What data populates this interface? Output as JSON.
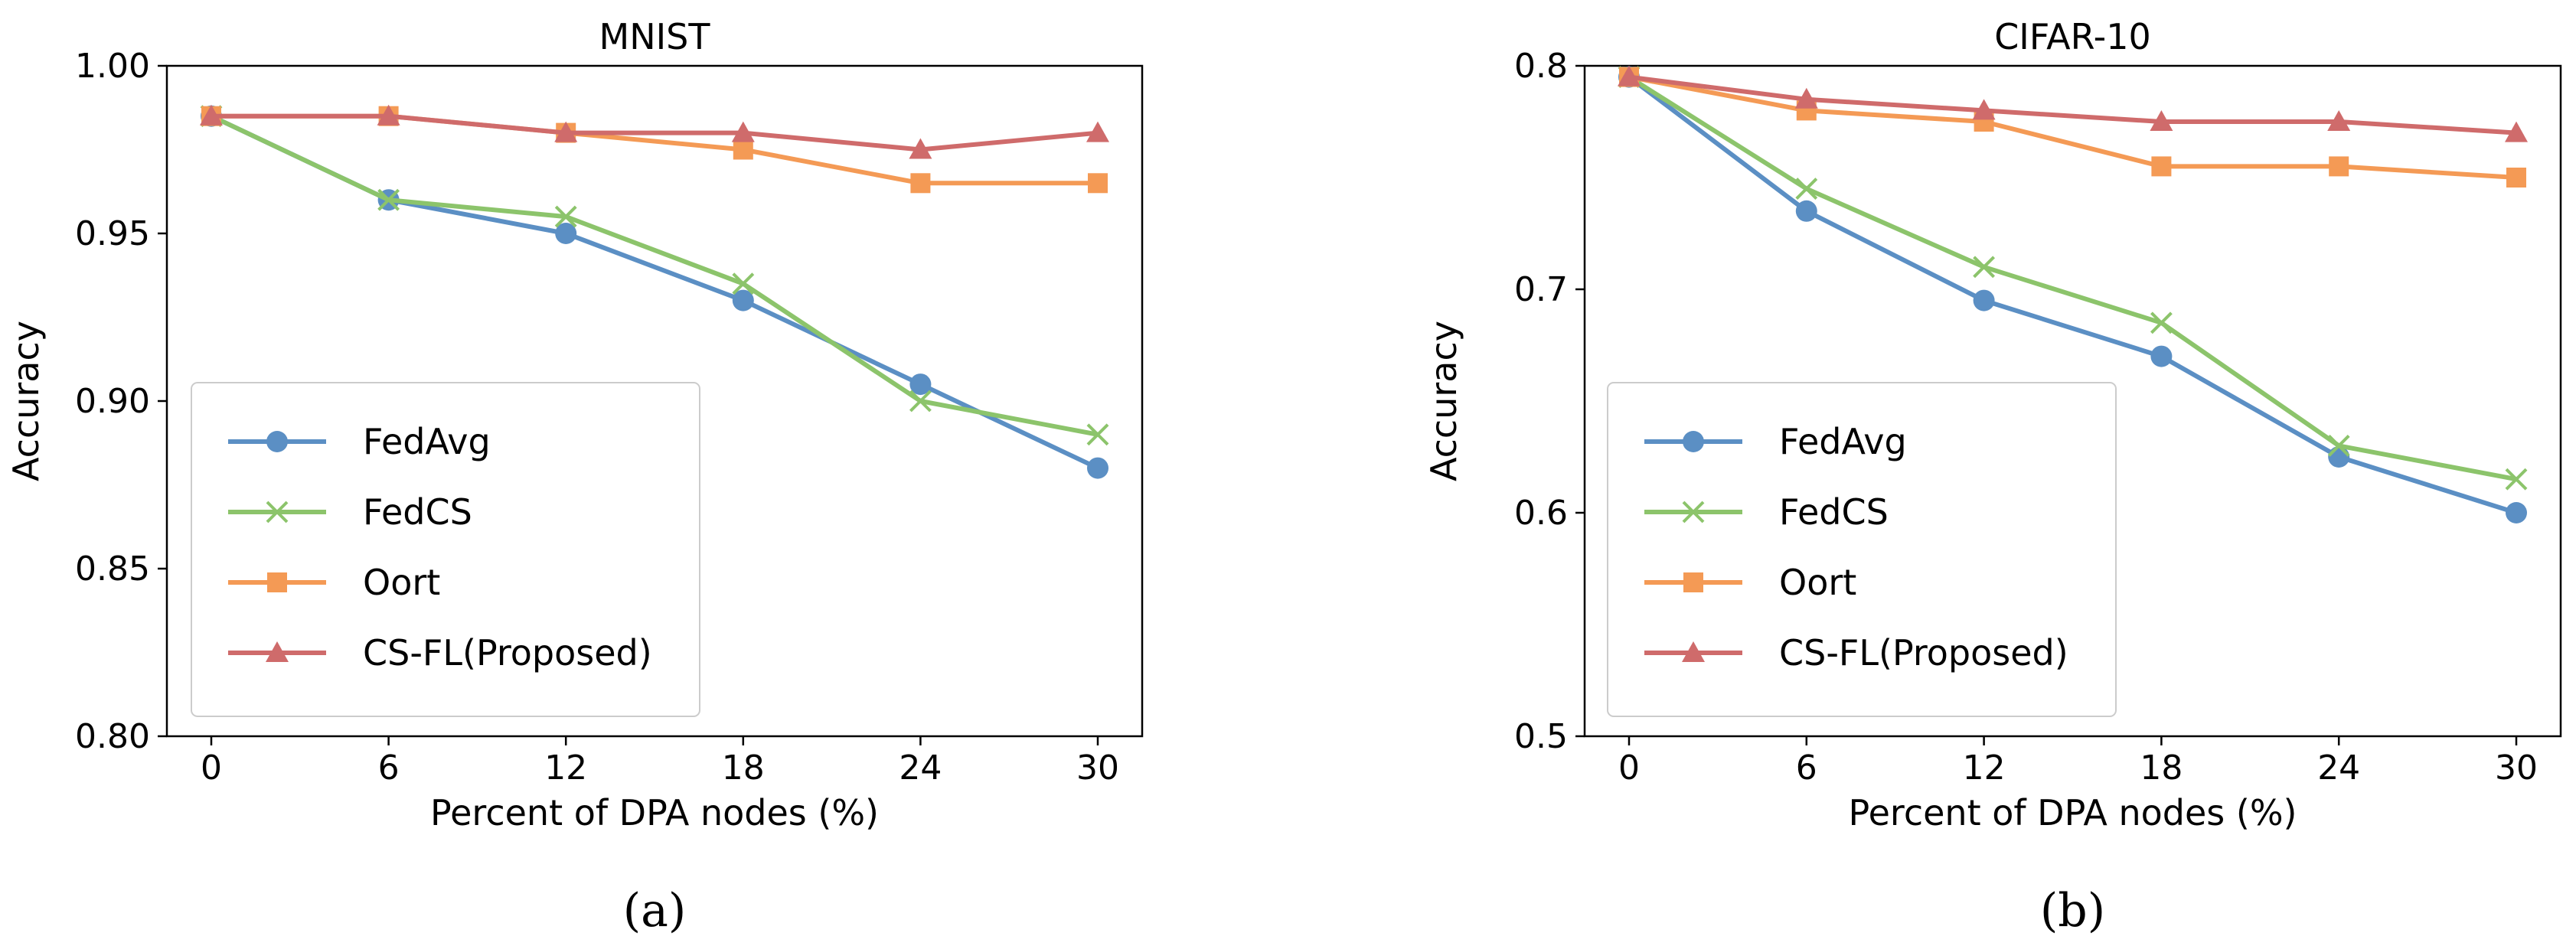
{
  "chart_data": [
    {
      "type": "line",
      "panel_label": "(a)",
      "title": "MNIST",
      "xlabel": "Percent of DPA nodes (%)",
      "ylabel": "Accuracy",
      "x": [
        0,
        6,
        12,
        18,
        24,
        30
      ],
      "x_ticks": [
        "0",
        "6",
        "12",
        "18",
        "24",
        "30"
      ],
      "ylim": [
        0.8,
        1.0
      ],
      "y_ticks": [
        "0.80",
        "0.85",
        "0.90",
        "0.95",
        "1.00"
      ],
      "legend_position": "lower-left",
      "grid": false,
      "series": [
        {
          "name": "FedAvg",
          "color": "#5b8fc4",
          "marker": "circle",
          "values": [
            0.985,
            0.96,
            0.95,
            0.93,
            0.905,
            0.88
          ]
        },
        {
          "name": "FedCS",
          "color": "#8cc46b",
          "marker": "x",
          "values": [
            0.985,
            0.96,
            0.955,
            0.935,
            0.9,
            0.89
          ]
        },
        {
          "name": "Oort",
          "color": "#f49a55",
          "marker": "square",
          "values": [
            0.985,
            0.985,
            0.98,
            0.975,
            0.965,
            0.965
          ]
        },
        {
          "name": "CS-FL(Proposed)",
          "color": "#cf6b6b",
          "marker": "triangle",
          "values": [
            0.985,
            0.985,
            0.98,
            0.98,
            0.975,
            0.98
          ]
        }
      ]
    },
    {
      "type": "line",
      "panel_label": "(b)",
      "title": "CIFAR-10",
      "xlabel": "Percent of DPA nodes (%)",
      "ylabel": "Accuracy",
      "x": [
        0,
        6,
        12,
        18,
        24,
        30
      ],
      "x_ticks": [
        "0",
        "6",
        "12",
        "18",
        "24",
        "30"
      ],
      "ylim": [
        0.5,
        0.8
      ],
      "y_ticks": [
        "0.5",
        "0.6",
        "0.7",
        "0.8"
      ],
      "legend_position": "lower-left",
      "grid": false,
      "series": [
        {
          "name": "FedAvg",
          "color": "#5b8fc4",
          "marker": "circle",
          "values": [
            0.795,
            0.735,
            0.695,
            0.67,
            0.625,
            0.6
          ]
        },
        {
          "name": "FedCS",
          "color": "#8cc46b",
          "marker": "x",
          "values": [
            0.795,
            0.745,
            0.71,
            0.685,
            0.63,
            0.615
          ]
        },
        {
          "name": "Oort",
          "color": "#f49a55",
          "marker": "square",
          "values": [
            0.795,
            0.78,
            0.775,
            0.755,
            0.755,
            0.75
          ]
        },
        {
          "name": "CS-FL(Proposed)",
          "color": "#cf6b6b",
          "marker": "triangle",
          "values": [
            0.795,
            0.785,
            0.78,
            0.775,
            0.775,
            0.77
          ]
        }
      ]
    }
  ]
}
